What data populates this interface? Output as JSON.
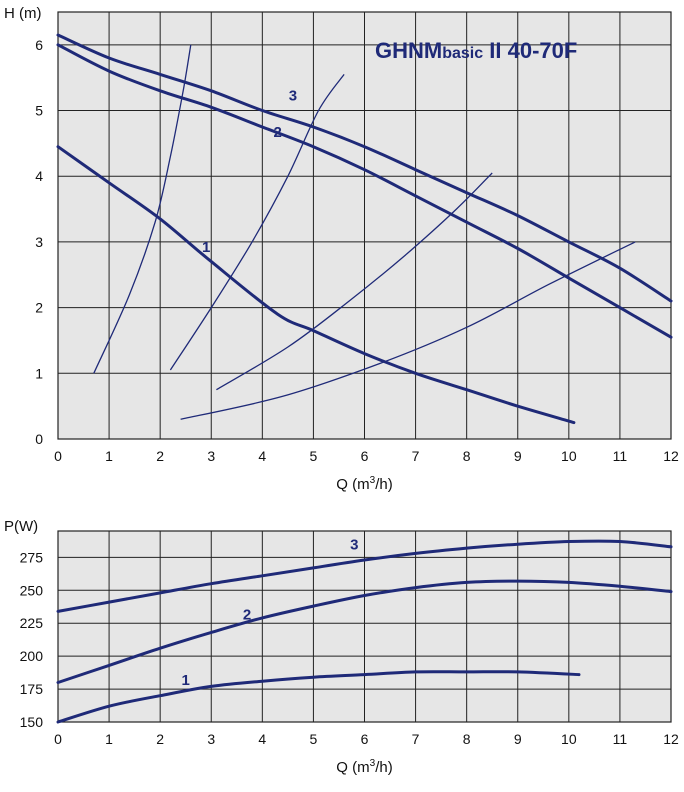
{
  "colors": {
    "plot_background": "#e6e6e6",
    "grid": "#222222",
    "curve": "#1f2a78",
    "system_curve": "#1f2a78",
    "title": "#1f2a78",
    "text": "#111111"
  },
  "chart_data": [
    {
      "type": "line",
      "title": "GHNMbasic II 40-70F",
      "title_parts": [
        "GHNM",
        "basic",
        " II ",
        "40-70F"
      ],
      "xlabel": "Q (m³/h)",
      "xlabel_parts": [
        "Q (m",
        "3",
        "/h)"
      ],
      "ylabel": "H (m)",
      "xlim": [
        0,
        12
      ],
      "ylim": [
        0,
        6.5
      ],
      "xticks": [
        0,
        1,
        2,
        3,
        4,
        5,
        6,
        7,
        8,
        9,
        10,
        11,
        12
      ],
      "yticks": [
        0,
        1,
        2,
        3,
        4,
        5,
        6
      ],
      "grid": true,
      "series": [
        {
          "name": "1",
          "x": [
            0,
            1,
            2,
            3,
            4.3,
            5,
            6,
            7,
            8,
            9,
            10.1
          ],
          "y": [
            4.45,
            3.9,
            3.35,
            2.7,
            1.9,
            1.65,
            1.3,
            1.0,
            0.75,
            0.5,
            0.25
          ]
        },
        {
          "name": "2",
          "x": [
            0,
            1,
            2,
            3,
            4,
            5,
            6,
            7,
            8,
            9,
            10,
            11,
            12
          ],
          "y": [
            6.0,
            5.6,
            5.3,
            5.05,
            4.75,
            4.45,
            4.1,
            3.7,
            3.3,
            2.9,
            2.45,
            2.0,
            1.55
          ]
        },
        {
          "name": "3",
          "x": [
            0,
            1,
            2,
            3,
            4,
            5,
            6,
            7,
            8,
            9,
            10,
            11,
            12
          ],
          "y": [
            6.15,
            5.8,
            5.55,
            5.3,
            5.0,
            4.75,
            4.45,
            4.1,
            3.75,
            3.4,
            3.0,
            2.6,
            2.1
          ]
        }
      ],
      "curve_labels": [
        {
          "text": "1",
          "x": 2.9,
          "y": 2.85
        },
        {
          "text": "2",
          "x": 4.3,
          "y": 4.6
        },
        {
          "text": "3",
          "x": 4.6,
          "y": 5.15
        }
      ],
      "system_curves": [
        {
          "x": [
            0.7,
            1.4,
            1.9,
            2.2,
            2.45,
            2.6
          ],
          "y": [
            1.0,
            2.2,
            3.3,
            4.3,
            5.3,
            6.0
          ]
        },
        {
          "x": [
            2.2,
            3.0,
            3.8,
            4.5,
            5.1,
            5.6
          ],
          "y": [
            1.05,
            2.0,
            3.0,
            4.0,
            5.0,
            5.55
          ]
        },
        {
          "x": [
            3.1,
            4.5,
            5.7,
            6.8,
            7.8,
            8.5
          ],
          "y": [
            0.75,
            1.4,
            2.1,
            2.8,
            3.5,
            4.05
          ]
        },
        {
          "x": [
            2.4,
            4.4,
            6.3,
            8.0,
            9.6,
            11.3
          ],
          "y": [
            0.3,
            0.65,
            1.15,
            1.7,
            2.35,
            3.0
          ]
        }
      ]
    },
    {
      "type": "line",
      "xlabel": "Q (m³/h)",
      "xlabel_parts": [
        "Q (m",
        "3",
        "/h)"
      ],
      "ylabel": "P(W)",
      "xlim": [
        0,
        12
      ],
      "ylim": [
        150,
        295
      ],
      "xticks": [
        0,
        1,
        2,
        3,
        4,
        5,
        6,
        7,
        8,
        9,
        10,
        11,
        12
      ],
      "yticks": [
        150,
        175,
        200,
        225,
        250,
        275
      ],
      "grid": true,
      "series": [
        {
          "name": "1",
          "x": [
            0,
            1,
            2,
            3,
            4,
            5,
            6,
            7,
            8,
            9,
            10.2
          ],
          "y": [
            150,
            162,
            170,
            177,
            181,
            184,
            186,
            188,
            188,
            188,
            186
          ]
        },
        {
          "name": "2",
          "x": [
            0,
            1,
            2,
            3,
            4,
            5,
            6,
            7,
            8,
            9,
            10,
            11,
            12
          ],
          "y": [
            180,
            193,
            206,
            218,
            229,
            238,
            246,
            252,
            256,
            257,
            256,
            253,
            249
          ]
        },
        {
          "name": "3",
          "x": [
            0,
            1,
            2,
            3,
            4,
            5,
            6,
            7,
            8,
            9,
            10,
            11,
            12
          ],
          "y": [
            234,
            241,
            248,
            255,
            261,
            267,
            273,
            278,
            282,
            285,
            287,
            287,
            283
          ]
        }
      ],
      "curve_labels": [
        {
          "text": "1",
          "x": 2.5,
          "y": 178
        },
        {
          "text": "2",
          "x": 3.7,
          "y": 228
        },
        {
          "text": "3",
          "x": 5.8,
          "y": 281
        }
      ]
    }
  ]
}
